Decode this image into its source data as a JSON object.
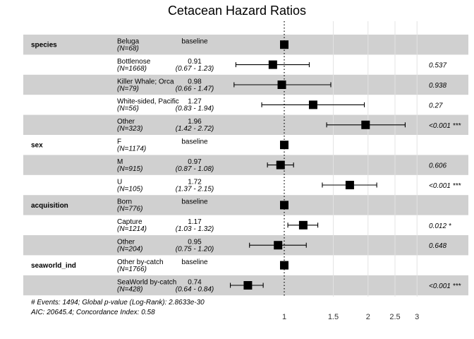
{
  "chart_data": {
    "type": "forest",
    "title": "Cetacean Hazard Ratios",
    "reference_value": 1,
    "x_scale": "log",
    "xlim": [
      0.6,
      3.2
    ],
    "x_ticks": [
      1,
      1.5,
      2,
      2.5,
      3
    ],
    "x_tick_labels": [
      "1",
      "1.5",
      "2",
      "2.5",
      "3"
    ],
    "grid": true,
    "rows": [
      {
        "variable": "species",
        "level": "Beluga",
        "n": "(N=68)",
        "hr_label": "baseline",
        "ci_label": "",
        "p_label": "",
        "hr": 1,
        "lo": null,
        "hi": null,
        "shaded": true
      },
      {
        "variable": "",
        "level": "Bottlenose",
        "n": "(N=1668)",
        "hr_label": "0.91",
        "ci_label": "(0.67 - 1.23)",
        "p_label": "0.537",
        "hr": 0.91,
        "lo": 0.67,
        "hi": 1.23,
        "shaded": false
      },
      {
        "variable": "",
        "level": "Killer Whale; Orca",
        "n": "(N=79)",
        "hr_label": "0.98",
        "ci_label": "(0.66 - 1.47)",
        "p_label": "0.938",
        "hr": 0.98,
        "lo": 0.66,
        "hi": 1.47,
        "shaded": true
      },
      {
        "variable": "",
        "level": "White-sided, Pacific",
        "n": "(N=56)",
        "hr_label": "1.27",
        "ci_label": "(0.83 - 1.94)",
        "p_label": "0.27",
        "hr": 1.27,
        "lo": 0.83,
        "hi": 1.94,
        "shaded": false
      },
      {
        "variable": "",
        "level": "Other",
        "n": "(N=323)",
        "hr_label": "1.96",
        "ci_label": "(1.42 - 2.72)",
        "p_label": "<0.001 ***",
        "hr": 1.96,
        "lo": 1.42,
        "hi": 2.72,
        "shaded": true
      },
      {
        "variable": "sex",
        "level": "F",
        "n": "(N=1174)",
        "hr_label": "baseline",
        "ci_label": "",
        "p_label": "",
        "hr": 1,
        "lo": null,
        "hi": null,
        "shaded": false
      },
      {
        "variable": "",
        "level": "M",
        "n": "(N=915)",
        "hr_label": "0.97",
        "ci_label": "(0.87 - 1.08)",
        "p_label": "0.606",
        "hr": 0.97,
        "lo": 0.87,
        "hi": 1.08,
        "shaded": true
      },
      {
        "variable": "",
        "level": "U",
        "n": "(N=105)",
        "hr_label": "1.72",
        "ci_label": "(1.37 - 2.15)",
        "p_label": "<0.001 ***",
        "hr": 1.72,
        "lo": 1.37,
        "hi": 2.15,
        "shaded": false
      },
      {
        "variable": "acquisition",
        "level": "Born",
        "n": "(N=776)",
        "hr_label": "baseline",
        "ci_label": "",
        "p_label": "",
        "hr": 1,
        "lo": null,
        "hi": null,
        "shaded": true
      },
      {
        "variable": "",
        "level": "Capture",
        "n": "(N=1214)",
        "hr_label": "1.17",
        "ci_label": "(1.03 - 1.32)",
        "p_label": "0.012 *",
        "hr": 1.17,
        "lo": 1.03,
        "hi": 1.32,
        "shaded": false
      },
      {
        "variable": "",
        "level": "Other",
        "n": "(N=204)",
        "hr_label": "0.95",
        "ci_label": "(0.75 - 1.20)",
        "p_label": "0.648",
        "hr": 0.95,
        "lo": 0.75,
        "hi": 1.2,
        "shaded": true
      },
      {
        "variable": "seaworld_ind",
        "level": "Other by-catch",
        "n": "(N=1766)",
        "hr_label": "baseline",
        "ci_label": "",
        "p_label": "",
        "hr": 1,
        "lo": null,
        "hi": null,
        "shaded": false
      },
      {
        "variable": "",
        "level": "SeaWorld by-catch",
        "n": "(N=428)",
        "hr_label": "0.74",
        "ci_label": "(0.64 - 0.84)",
        "p_label": "<0.001 ***",
        "hr": 0.74,
        "lo": 0.64,
        "hi": 0.84,
        "shaded": true
      }
    ],
    "footnotes": [
      "# Events: 1494; Global p-value (Log-Rank): 2.8633e-30",
      "AIC: 20645.4; Concordance Index: 0.58"
    ]
  }
}
